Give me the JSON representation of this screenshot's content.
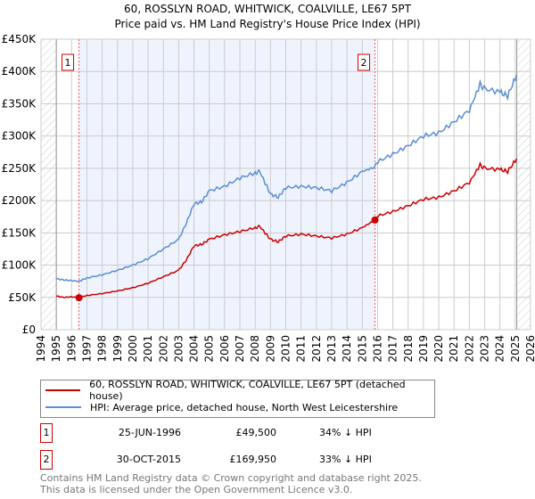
{
  "chart_data": {
    "type": "line",
    "title": "60, ROSSLYN ROAD, WHITWICK, COALVILLE, LE67 5PT",
    "subtitle": "Price paid vs. HM Land Registry's House Price Index (HPI)",
    "xlim": [
      1994,
      2026
    ],
    "ylim": [
      0,
      450000
    ],
    "x_ticks": [
      "1994",
      "1995",
      "1996",
      "1997",
      "1998",
      "1999",
      "2000",
      "2001",
      "2002",
      "2003",
      "2004",
      "2005",
      "2006",
      "2007",
      "2008",
      "2009",
      "2010",
      "2011",
      "2012",
      "2013",
      "2014",
      "2015",
      "2016",
      "2017",
      "2018",
      "2019",
      "2020",
      "2021",
      "2022",
      "2023",
      "2024",
      "2025",
      "2026"
    ],
    "y_ticks": [
      {
        "v": 0,
        "label": "£0"
      },
      {
        "v": 50000,
        "label": "£50K"
      },
      {
        "v": 100000,
        "label": "£100K"
      },
      {
        "v": 150000,
        "label": "£150K"
      },
      {
        "v": 200000,
        "label": "£200K"
      },
      {
        "v": 250000,
        "label": "£250K"
      },
      {
        "v": 300000,
        "label": "£300K"
      },
      {
        "v": 350000,
        "label": "£350K"
      },
      {
        "v": 400000,
        "label": "£400K"
      },
      {
        "v": 450000,
        "label": "£450K"
      }
    ],
    "grid": true,
    "shaded_range": [
      1996.48,
      2015.83
    ],
    "series": [
      {
        "name": "60, ROSSLYN ROAD, WHITWICK, COALVILLE, LE67 5PT (detached house)",
        "color": "#cc0000",
        "x": [
          1995,
          1995.5,
          1996,
          1996.48,
          1997,
          1998,
          1999,
          2000,
          2001,
          2002,
          2003,
          2003.5,
          2004,
          2004.5,
          2005,
          2006,
          2007,
          2008,
          2008.3,
          2009,
          2009.5,
          2010,
          2011,
          2012,
          2013,
          2014,
          2015,
          2015.83,
          2016,
          2017,
          2018,
          2019,
          2020,
          2021,
          2022,
          2022.7,
          2023,
          2024,
          2024.5,
          2025.1
        ],
        "y": [
          52000,
          50000,
          51000,
          49500,
          53000,
          56000,
          60000,
          65000,
          72000,
          82000,
          92000,
          108000,
          130000,
          132000,
          140000,
          147000,
          152000,
          158000,
          160000,
          140000,
          136000,
          145000,
          148000,
          145000,
          142000,
          148000,
          158000,
          169950,
          176000,
          183000,
          192000,
          202000,
          205000,
          215000,
          228000,
          255000,
          250000,
          248000,
          245000,
          265000
        ]
      },
      {
        "name": "HPI: Average price, detached house, North West Leicestershire",
        "color": "#5b8fd0",
        "x": [
          1995,
          1995.5,
          1996,
          1996.48,
          1997,
          1998,
          1999,
          2000,
          2001,
          2002,
          2003,
          2003.5,
          2004,
          2004.5,
          2005,
          2006,
          2007,
          2008,
          2008.3,
          2009,
          2009.5,
          2010,
          2011,
          2012,
          2013,
          2014,
          2015,
          2015.83,
          2016,
          2017,
          2018,
          2019,
          2020,
          2021,
          2022,
          2022.7,
          2023,
          2024,
          2024.5,
          2025.1
        ],
        "y": [
          79000,
          77000,
          76000,
          75000,
          80000,
          85000,
          92000,
          100000,
          110000,
          125000,
          140000,
          165000,
          195000,
          198000,
          215000,
          222000,
          235000,
          243000,
          245000,
          210000,
          205000,
          220000,
          222000,
          220000,
          215000,
          228000,
          245000,
          252000,
          260000,
          272000,
          285000,
          300000,
          305000,
          322000,
          340000,
          380000,
          373000,
          368000,
          362000,
          395000
        ]
      }
    ],
    "annotations": [
      {
        "label": "1",
        "x": 1996.48,
        "y": 49500
      },
      {
        "label": "2",
        "x": 2015.83,
        "y": 169950
      }
    ]
  },
  "transactions": [
    {
      "num": "1",
      "date": "25-JUN-1996",
      "price": "£49,500",
      "hpi": "34% ↓ HPI"
    },
    {
      "num": "2",
      "date": "30-OCT-2015",
      "price": "£169,950",
      "hpi": "33% ↓ HPI"
    }
  ],
  "footer": {
    "line1": "Contains HM Land Registry data © Crown copyright and database right 2025.",
    "line2": "This data is licensed under the Open Government Licence v3.0."
  }
}
